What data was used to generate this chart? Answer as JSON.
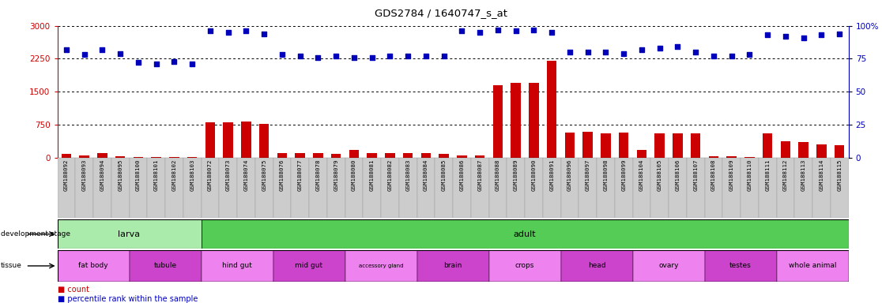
{
  "title": "GDS2784 / 1640747_s_at",
  "samples": [
    "GSM188092",
    "GSM188093",
    "GSM188094",
    "GSM188095",
    "GSM188100",
    "GSM188101",
    "GSM188102",
    "GSM188103",
    "GSM188072",
    "GSM188073",
    "GSM188074",
    "GSM188075",
    "GSM188076",
    "GSM188077",
    "GSM188078",
    "GSM188079",
    "GSM188080",
    "GSM188081",
    "GSM188082",
    "GSM188083",
    "GSM188084",
    "GSM188085",
    "GSM188086",
    "GSM188087",
    "GSM188088",
    "GSM188089",
    "GSM188090",
    "GSM188091",
    "GSM188096",
    "GSM188097",
    "GSM188098",
    "GSM188099",
    "GSM188104",
    "GSM188105",
    "GSM188106",
    "GSM188107",
    "GSM188108",
    "GSM188109",
    "GSM188110",
    "GSM188111",
    "GSM188112",
    "GSM188113",
    "GSM188114",
    "GSM188115"
  ],
  "counts": [
    80,
    55,
    95,
    25,
    15,
    10,
    10,
    10,
    810,
    800,
    820,
    760,
    100,
    95,
    110,
    90,
    165,
    100,
    100,
    95,
    105,
    90,
    45,
    45,
    1650,
    1700,
    1700,
    2200,
    560,
    580,
    550,
    560,
    180,
    550,
    550,
    550,
    30,
    30,
    18,
    545,
    365,
    345,
    295,
    290
  ],
  "percentiles": [
    82,
    78,
    82,
    79,
    72,
    71,
    73,
    71,
    96,
    95,
    96,
    94,
    78,
    77,
    76,
    77,
    76,
    76,
    77,
    77,
    77,
    77,
    96,
    95,
    97,
    96,
    97,
    95,
    80,
    80,
    80,
    79,
    82,
    83,
    84,
    80,
    77,
    77,
    78,
    93,
    92,
    91,
    93,
    94
  ],
  "ylim_left": [
    0,
    3000
  ],
  "ylim_right": [
    0,
    100
  ],
  "yticks_left": [
    0,
    750,
    1500,
    2250,
    3000
  ],
  "yticks_right": [
    0,
    25,
    50,
    75,
    100
  ],
  "ytick_labels_right": [
    "0",
    "25",
    "50",
    "75",
    "100%"
  ],
  "dev_stage_groups": [
    {
      "label": "larva",
      "start": 0,
      "end": 8,
      "color": "#aaeaaa"
    },
    {
      "label": "adult",
      "start": 8,
      "end": 44,
      "color": "#55cc55"
    }
  ],
  "tissue_groups": [
    {
      "label": "fat body",
      "start": 0,
      "end": 4,
      "color": "#ee82ee"
    },
    {
      "label": "tubule",
      "start": 4,
      "end": 8,
      "color": "#cc44cc"
    },
    {
      "label": "hind gut",
      "start": 8,
      "end": 12,
      "color": "#ee82ee"
    },
    {
      "label": "mid gut",
      "start": 12,
      "end": 16,
      "color": "#cc44cc"
    },
    {
      "label": "accessory gland",
      "start": 16,
      "end": 20,
      "color": "#ee82ee"
    },
    {
      "label": "brain",
      "start": 20,
      "end": 24,
      "color": "#cc44cc"
    },
    {
      "label": "crops",
      "start": 24,
      "end": 28,
      "color": "#ee82ee"
    },
    {
      "label": "head",
      "start": 28,
      "end": 32,
      "color": "#cc44cc"
    },
    {
      "label": "ovary",
      "start": 32,
      "end": 36,
      "color": "#ee82ee"
    },
    {
      "label": "testes",
      "start": 36,
      "end": 40,
      "color": "#cc44cc"
    },
    {
      "label": "whole animal",
      "start": 40,
      "end": 44,
      "color": "#ee82ee"
    }
  ],
  "bar_color": "#CC0000",
  "dot_color": "#0000BB",
  "left_axis_color": "#CC0000",
  "right_axis_color": "#0000BB",
  "label_fontsize": 5.3,
  "tissue_fontsize": 6.5,
  "tissue_small_fontsize": 5.0,
  "dev_fontsize": 8.0
}
